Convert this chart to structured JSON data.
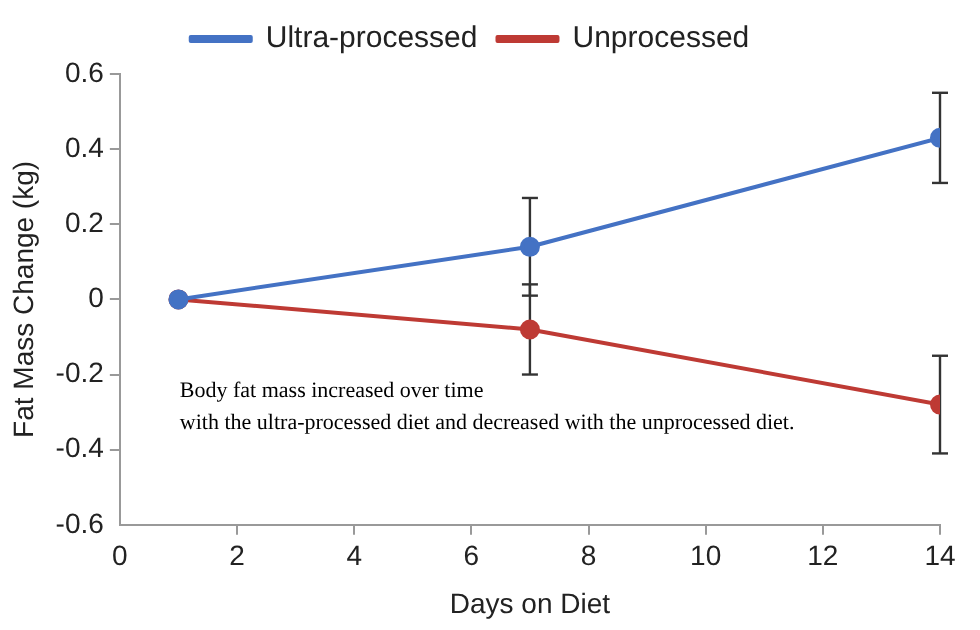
{
  "chart_data": {
    "type": "line",
    "xlabel": "Days on Diet",
    "ylabel": "Fat Mass Change (kg)",
    "x": [
      1,
      7,
      14
    ],
    "series": [
      {
        "name": "Ultra-processed",
        "color": "#4472c4",
        "values": [
          0,
          0.14,
          0.43
        ],
        "errors": [
          null,
          0.13,
          0.12
        ]
      },
      {
        "name": "Unprocessed",
        "color": "#be3a34",
        "values": [
          0,
          -0.08,
          -0.28
        ],
        "errors": [
          null,
          0.12,
          0.13
        ]
      }
    ],
    "xlim": [
      0,
      14
    ],
    "xticks": [
      0,
      2,
      4,
      6,
      8,
      10,
      12,
      14
    ],
    "ylim": [
      -0.6,
      0.6
    ],
    "yticks": [
      -0.6,
      -0.4,
      -0.2,
      0,
      0.2,
      0.4,
      0.6
    ],
    "grid": false,
    "legend": "top",
    "marker": "circle",
    "line_style": "solid",
    "annotations": [
      "Body fat mass increased over time\nwith the ultra-processed diet and decreased with the unprocessed diet."
    ]
  }
}
